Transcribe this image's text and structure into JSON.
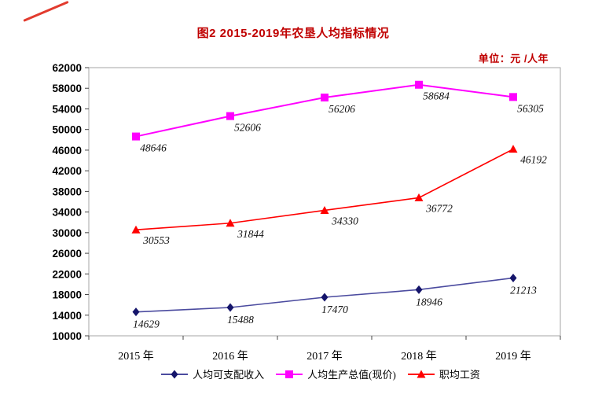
{
  "figure": {
    "title": "图2  2015-2019年农垦人均指标情况",
    "unit_label": "单位：元 /人年"
  },
  "colors": {
    "title_text": "#c00000",
    "unit_text": "#c00000",
    "corner_mark": "#e23b2e",
    "axis_border": "#a6a6a6",
    "tick": "#444444",
    "label_text": "#000000"
  },
  "chart_data": {
    "type": "line",
    "title": "图2  2015-2019年农垦人均指标情况",
    "unit": "元/人年",
    "categories": [
      "2015 年",
      "2016 年",
      "2017 年",
      "2018 年",
      "2019 年"
    ],
    "ylim": [
      10000,
      62000
    ],
    "yticks": [
      10000,
      14000,
      18000,
      22000,
      26000,
      30000,
      34000,
      38000,
      42000,
      46000,
      50000,
      54000,
      58000,
      62000
    ],
    "grid": false,
    "legend_position": "bottom",
    "series": [
      {
        "name": "人均可支配收入",
        "marker": "diamond",
        "line_color": "#4b4b9f",
        "marker_color": "#15156b",
        "values": [
          14629,
          15488,
          17470,
          18946,
          21213
        ]
      },
      {
        "name": "人均生产总值(现价)",
        "marker": "square",
        "line_color": "#ff00ff",
        "marker_color": "#ff00ff",
        "values": [
          48646,
          52606,
          56206,
          58684,
          56305
        ]
      },
      {
        "name": "职均工资",
        "marker": "triangle",
        "line_color": "#ff0000",
        "marker_color": "#ff0000",
        "values": [
          30553,
          31844,
          34330,
          36772,
          46192
        ]
      }
    ]
  }
}
